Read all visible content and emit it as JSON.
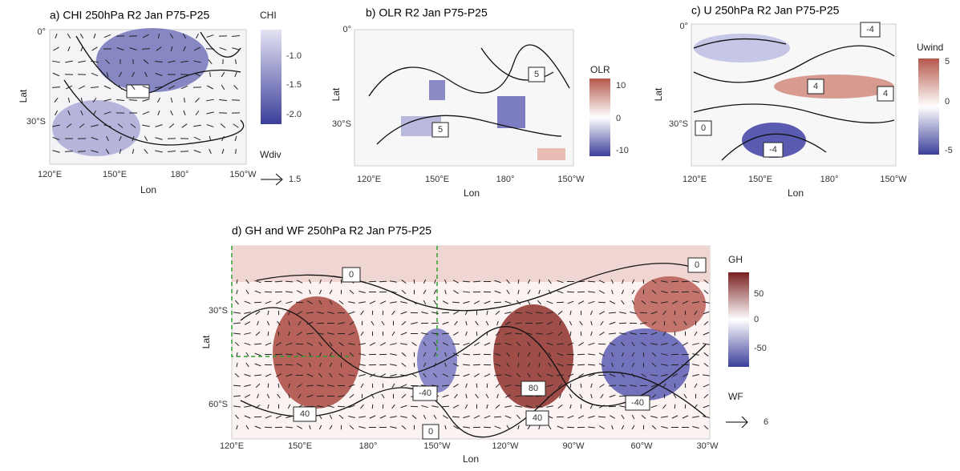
{
  "panels": [
    {
      "title": "a) CHI 250hPa R2 Jan P75-P25",
      "xlabel": "Lon",
      "ylabel": "Lat",
      "xticks": [
        "120°E",
        "150°E",
        "180°",
        "150°W"
      ],
      "yticks": [
        "0°",
        "30°S"
      ],
      "colorbar": {
        "title": "CHI",
        "ticks": [
          "-1.0",
          "-1.5",
          "-2.0"
        ]
      },
      "vector_legend": {
        "title": "Wdiv",
        "value": "1.5"
      }
    },
    {
      "title": "b) OLR R2 Jan P75-P25",
      "xlabel": "Lon",
      "ylabel": "Lat",
      "xticks": [
        "120°E",
        "150°E",
        "180°",
        "150°W"
      ],
      "yticks": [
        "0°",
        "30°S"
      ],
      "colorbar": {
        "title": "OLR",
        "ticks": [
          "10",
          "0",
          "-10"
        ]
      },
      "contour_labels": [
        "5",
        "5"
      ]
    },
    {
      "title": "c) U 250hPa R2 Jan P75-P25",
      "xlabel": "Lon",
      "ylabel": "Lat",
      "xticks": [
        "120°E",
        "150°E",
        "180°",
        "150°W"
      ],
      "yticks": [
        "0°",
        "30°S"
      ],
      "colorbar": {
        "title": "Uwind",
        "ticks": [
          "5",
          "0",
          "-5"
        ]
      },
      "contour_labels": [
        "-4",
        "4",
        "4",
        "0",
        "-4"
      ]
    },
    {
      "title": "d) GH and WF 250hPa R2 Jan P75-P25",
      "xlabel": "Lon",
      "ylabel": "Lat",
      "xticks": [
        "120°E",
        "150°E",
        "180°",
        "150°W",
        "120°W",
        "90°W",
        "60°W",
        "30°W"
      ],
      "yticks": [
        "30°S",
        "60°S"
      ],
      "colorbar": {
        "title": "GH",
        "ticks": [
          "50",
          "0",
          "-50"
        ]
      },
      "vector_legend": {
        "title": "WF",
        "value": "6"
      },
      "contour_labels": [
        "0",
        "0",
        "40",
        "-40",
        "80",
        "-40",
        "40",
        "0"
      ]
    }
  ]
}
